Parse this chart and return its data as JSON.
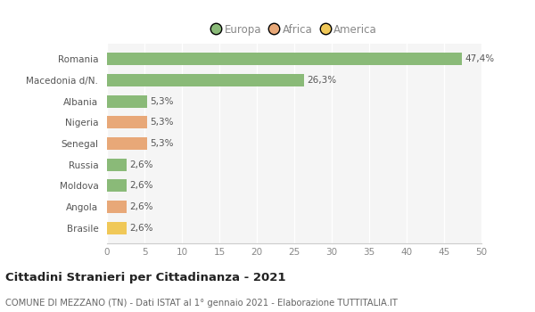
{
  "categories": [
    "Brasile",
    "Angola",
    "Moldova",
    "Russia",
    "Senegal",
    "Nigeria",
    "Albania",
    "Macedonia d/N.",
    "Romania"
  ],
  "values": [
    2.6,
    2.6,
    2.6,
    2.6,
    5.3,
    5.3,
    5.3,
    26.3,
    47.4
  ],
  "labels": [
    "2,6%",
    "2,6%",
    "2,6%",
    "2,6%",
    "5,3%",
    "5,3%",
    "5,3%",
    "26,3%",
    "47,4%"
  ],
  "colors": [
    "#f0c858",
    "#e8a878",
    "#8aba78",
    "#8aba78",
    "#e8a878",
    "#e8a878",
    "#8aba78",
    "#8aba78",
    "#8aba78"
  ],
  "legend": [
    {
      "label": "Europa",
      "color": "#8aba78"
    },
    {
      "label": "Africa",
      "color": "#e8a878"
    },
    {
      "label": "America",
      "color": "#f0c858"
    }
  ],
  "xlim": [
    0,
    50
  ],
  "xticks": [
    0,
    5,
    10,
    15,
    20,
    25,
    30,
    35,
    40,
    45,
    50
  ],
  "title": "Cittadini Stranieri per Cittadinanza - 2021",
  "subtitle": "COMUNE DI MEZZANO (TN) - Dati ISTAT al 1° gennaio 2021 - Elaborazione TUTTITALIA.IT",
  "bg_color": "#ffffff",
  "plot_bg_color": "#f5f5f5",
  "grid_color": "#ffffff",
  "label_color": "#555555",
  "tick_color": "#888888"
}
